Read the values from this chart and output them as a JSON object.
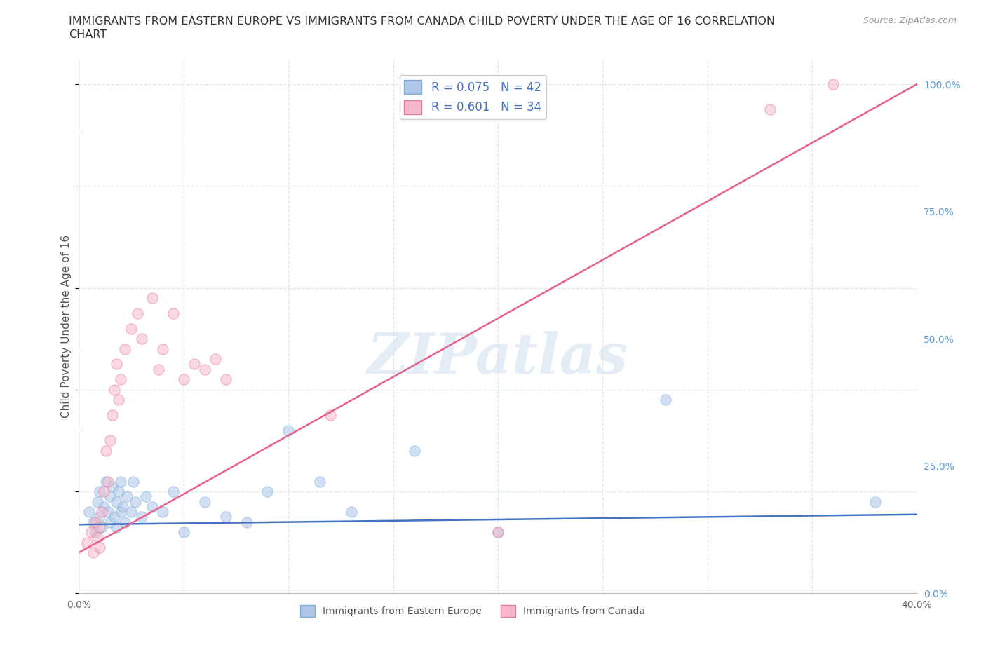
{
  "title_line1": "IMMIGRANTS FROM EASTERN EUROPE VS IMMIGRANTS FROM CANADA CHILD POVERTY UNDER THE AGE OF 16 CORRELATION",
  "title_line2": "CHART",
  "source": "Source: ZipAtlas.com",
  "ylabel": "Child Poverty Under the Age of 16",
  "watermark": "ZIPatlas",
  "xlim": [
    0.0,
    0.4
  ],
  "ylim": [
    0.0,
    1.05
  ],
  "xticks": [
    0.0,
    0.05,
    0.1,
    0.15,
    0.2,
    0.25,
    0.3,
    0.35,
    0.4
  ],
  "xticklabels": [
    "0.0%",
    "",
    "",
    "",
    "",
    "",
    "",
    "",
    "40.0%"
  ],
  "yticks_right": [
    0.0,
    0.25,
    0.5,
    0.75,
    1.0
  ],
  "yticklabels_right": [
    "0.0%",
    "25.0%",
    "50.0%",
    "75.0%",
    "100.0%"
  ],
  "series1_color": "#aec6e8",
  "series1_edge": "#7aafd4",
  "series2_color": "#f5b8cb",
  "series2_edge": "#e8789f",
  "line1_color": "#4472c4",
  "line2_color": "#e8608a",
  "legend_R1": "0.075",
  "legend_N1": "42",
  "legend_R2": "0.601",
  "legend_N2": "34",
  "legend_label1": "Immigrants from Eastern Europe",
  "legend_label2": "Immigrants from Canada",
  "background_color": "#ffffff",
  "grid_color": "#dce6f0",
  "series1_x": [
    0.005,
    0.007,
    0.008,
    0.009,
    0.01,
    0.01,
    0.011,
    0.012,
    0.013,
    0.014,
    0.015,
    0.015,
    0.016,
    0.017,
    0.018,
    0.018,
    0.019,
    0.02,
    0.02,
    0.021,
    0.022,
    0.023,
    0.025,
    0.026,
    0.027,
    0.03,
    0.032,
    0.035,
    0.04,
    0.045,
    0.05,
    0.06,
    0.07,
    0.08,
    0.09,
    0.1,
    0.115,
    0.13,
    0.16,
    0.2,
    0.28,
    0.38
  ],
  "series1_y": [
    0.16,
    0.14,
    0.12,
    0.18,
    0.15,
    0.2,
    0.13,
    0.17,
    0.22,
    0.16,
    0.14,
    0.19,
    0.21,
    0.15,
    0.13,
    0.18,
    0.2,
    0.16,
    0.22,
    0.17,
    0.14,
    0.19,
    0.16,
    0.22,
    0.18,
    0.15,
    0.19,
    0.17,
    0.16,
    0.2,
    0.12,
    0.18,
    0.15,
    0.14,
    0.2,
    0.32,
    0.22,
    0.16,
    0.28,
    0.12,
    0.38,
    0.18
  ],
  "series2_x": [
    0.004,
    0.006,
    0.007,
    0.008,
    0.009,
    0.01,
    0.01,
    0.011,
    0.012,
    0.013,
    0.014,
    0.015,
    0.016,
    0.017,
    0.018,
    0.019,
    0.02,
    0.022,
    0.025,
    0.028,
    0.03,
    0.035,
    0.038,
    0.04,
    0.045,
    0.05,
    0.055,
    0.06,
    0.065,
    0.07,
    0.12,
    0.2,
    0.33,
    0.36
  ],
  "series2_y": [
    0.1,
    0.12,
    0.08,
    0.14,
    0.11,
    0.09,
    0.13,
    0.16,
    0.2,
    0.28,
    0.22,
    0.3,
    0.35,
    0.4,
    0.45,
    0.38,
    0.42,
    0.48,
    0.52,
    0.55,
    0.5,
    0.58,
    0.44,
    0.48,
    0.55,
    0.42,
    0.45,
    0.44,
    0.46,
    0.42,
    0.35,
    0.12,
    0.95,
    1.0
  ],
  "marker_size": 120,
  "marker_alpha": 0.55,
  "title_fontsize": 11.5,
  "axis_label_fontsize": 11,
  "tick_fontsize": 10,
  "legend_fontsize": 12,
  "watermark_fontsize": 58
}
